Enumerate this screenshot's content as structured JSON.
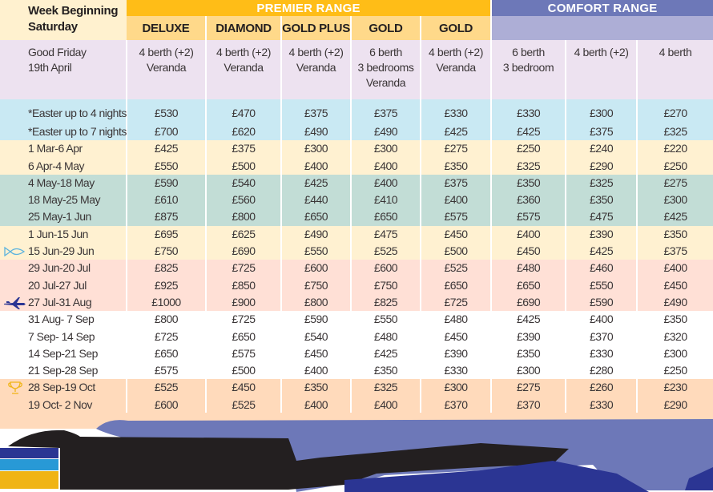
{
  "table": {
    "week_header": [
      "Week Beginning",
      "Saturday"
    ],
    "ranges": [
      {
        "label": "PREMIER RANGE",
        "color": "#ffbd17",
        "span": 5
      },
      {
        "label": "COMFORT RANGE",
        "color": "#6d78b8",
        "span": 3
      }
    ],
    "columns": [
      "DELUXE",
      "DIAMOND",
      "GOLD PLUS",
      "GOLD",
      "GOLD",
      "",
      "",
      ""
    ],
    "description_row": {
      "label": [
        "Good Friday",
        "19th April"
      ],
      "cells": [
        [
          "4 berth (+2)",
          "Veranda"
        ],
        [
          "4 berth (+2)",
          "Veranda"
        ],
        [
          "4 berth (+2)",
          "Veranda"
        ],
        [
          "6 berth",
          "3 bedrooms",
          "Veranda"
        ],
        [
          "4 berth (+2)",
          "Veranda"
        ],
        [
          "6 berth",
          "3 bedroom"
        ],
        [
          "4 berth (+2)"
        ],
        [
          "4 berth"
        ]
      ]
    },
    "groups": [
      {
        "name": "easter",
        "color": "#c9e9f3",
        "rows": [
          {
            "label": "*Easter up to 4 nights",
            "icon": "",
            "prices": [
              "£530",
              "£470",
              "£375",
              "£375",
              "£330",
              "£330",
              "£300",
              "£270"
            ]
          },
          {
            "label": "*Easter up to 7 nights",
            "icon": "",
            "prices": [
              "£700",
              "£620",
              "£490",
              "£490",
              "£425",
              "£425",
              "£375",
              "£325"
            ]
          }
        ]
      },
      {
        "name": "spring",
        "color": "#fff1d1",
        "rows": [
          {
            "label": "1 Mar-6 Apr",
            "icon": "",
            "prices": [
              "£425",
              "£375",
              "£300",
              "£300",
              "£275",
              "£250",
              "£240",
              "£220"
            ]
          },
          {
            "label": "6 Apr-4 May",
            "icon": "",
            "prices": [
              "£550",
              "£500",
              "£400",
              "£400",
              "£350",
              "£325",
              "£290",
              "£250"
            ]
          }
        ]
      },
      {
        "name": "may",
        "color": "#c2ddd6",
        "rows": [
          {
            "label": "4 May-18 May",
            "icon": "",
            "prices": [
              "£590",
              "£540",
              "£425",
              "£400",
              "£375",
              "£350",
              "£325",
              "£275"
            ]
          },
          {
            "label": "18 May-25 May",
            "icon": "",
            "prices": [
              "£610",
              "£560",
              "£440",
              "£410",
              "£400",
              "£360",
              "£350",
              "£300"
            ]
          },
          {
            "label": "25 May-1 Jun",
            "icon": "",
            "prices": [
              "£875",
              "£800",
              "£650",
              "£650",
              "£575",
              "£575",
              "£475",
              "£425"
            ]
          }
        ]
      },
      {
        "name": "june",
        "color": "#fff1d1",
        "rows": [
          {
            "label": "1 Jun-15 Jun",
            "icon": "",
            "prices": [
              "£695",
              "£625",
              "£490",
              "£475",
              "£450",
              "£400",
              "£390",
              "£350"
            ]
          },
          {
            "label": "15 Jun-29 Jun",
            "icon": "fish-icon",
            "prices": [
              "£750",
              "£690",
              "£550",
              "£525",
              "£500",
              "£450",
              "£425",
              "£375"
            ]
          }
        ]
      },
      {
        "name": "summer",
        "color": "#ffe0d6",
        "rows": [
          {
            "label": "29 Jun-20 Jul",
            "icon": "",
            "prices": [
              "£825",
              "£725",
              "£600",
              "£600",
              "£525",
              "£480",
              "£460",
              "£400"
            ]
          },
          {
            "label": "20 Jul-27 Jul",
            "icon": "",
            "prices": [
              "£925",
              "£850",
              "£750",
              "£750",
              "£650",
              "£650",
              "£550",
              "£450"
            ]
          },
          {
            "label": "27 Jul-31 Aug",
            "icon": "jet-plane-icon",
            "prices": [
              "£1000",
              "£900",
              "£800",
              "£825",
              "£725",
              "£690",
              "£590",
              "£490"
            ]
          }
        ]
      },
      {
        "name": "september",
        "color": "#fff1d1",
        "rows": [
          {
            "label": "31 Aug- 7 Sep",
            "icon": "",
            "prices": [
              "£800",
              "£725",
              "£590",
              "£550",
              "£480",
              "£425",
              "£400",
              "£350"
            ]
          },
          {
            "label": "7 Sep- 14 Sep",
            "icon": "",
            "prices": [
              "£725",
              "£650",
              "£540",
              "£480",
              "£450",
              "£390",
              "£370",
              "£320"
            ]
          },
          {
            "label": "14 Sep-21 Sep",
            "icon": "",
            "prices": [
              "£650",
              "£575",
              "£450",
              "£425",
              "£390",
              "£350",
              "£330",
              "£300"
            ]
          },
          {
            "label": "21 Sep-28 Sep",
            "icon": "",
            "prices": [
              "£575",
              "£500",
              "£400",
              "£350",
              "£330",
              "£300",
              "£280",
              "£250"
            ]
          }
        ]
      },
      {
        "name": "autumn",
        "color": "#ffdabb",
        "rows": [
          {
            "label": "28 Sep-19 Oct",
            "icon": "trophy-icon",
            "prices": [
              "£525",
              "£450",
              "£350",
              "£325",
              "£300",
              "£275",
              "£260",
              "£230"
            ]
          },
          {
            "label": "19 Oct- 2 Nov",
            "icon": "",
            "prices": [
              "£600",
              "£525",
              "£400",
              "£400",
              "£370",
              "£370",
              "£330",
              "£290"
            ]
          }
        ]
      }
    ]
  },
  "colors": {
    "premier": "#ffbd17",
    "premier_sub": "#ffd98a",
    "comfort": "#6d78b8",
    "comfort_sub": "#adaed6",
    "description_row": "#ede2f0",
    "text": "#3a3536"
  }
}
